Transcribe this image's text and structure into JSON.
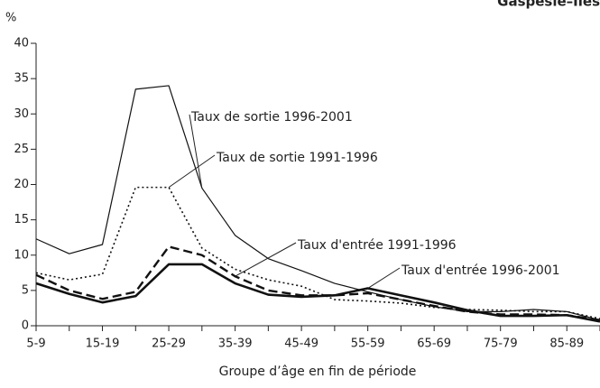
{
  "chart_data": {
    "type": "line",
    "title": "Gaspésie–Îles",
    "y_label": "%",
    "x_label": "Groupe d’âge en fin de période",
    "categories": [
      "5-9",
      null,
      "15-19",
      null,
      "25-29",
      null,
      "35-39",
      null,
      "45-49",
      null,
      "55-59",
      null,
      "65-69",
      null,
      "75-79",
      null,
      "85-89",
      null
    ],
    "ylim": [
      0,
      40
    ],
    "yticks": [
      0,
      5,
      10,
      15,
      20,
      25,
      30,
      35,
      40
    ],
    "series": [
      {
        "name": "Taux de sortie 1996-2001",
        "color": "#111111",
        "style": "thin",
        "values": [
          12.3,
          10.2,
          11.5,
          33.5,
          34,
          19.5,
          12.8,
          9.5,
          7.8,
          6,
          4.8,
          3.7,
          2.7,
          2.0,
          2.0,
          2.3,
          2.0,
          0.8
        ]
      },
      {
        "name": "Taux de sortie 1991-1996",
        "color": "#111111",
        "style": "dotted",
        "values": [
          7.5,
          6.5,
          7.3,
          19.6,
          19.6,
          11,
          8,
          6.5,
          5.6,
          3.7,
          3.5,
          3.2,
          2.6,
          2.3,
          2.2,
          2.0,
          2.0,
          1.0
        ]
      },
      {
        "name": "Taux d'entrée 1991-1996",
        "color": "#111111",
        "style": "dashed",
        "values": [
          7.2,
          5.0,
          3.8,
          4.8,
          11.2,
          10,
          7,
          5,
          4.3,
          4.3,
          4.6,
          3.7,
          2.8,
          2.0,
          1.6,
          1.6,
          1.5,
          0.8
        ]
      },
      {
        "name": "Taux d'entrée 1996-2001",
        "color": "#111111",
        "style": "thick",
        "values": [
          6,
          4.5,
          3.3,
          4.2,
          8.7,
          8.7,
          6,
          4.4,
          4.1,
          4.3,
          5.3,
          4.3,
          3.3,
          2.2,
          1.4,
          1.4,
          1.5,
          0.6
        ]
      }
    ]
  }
}
